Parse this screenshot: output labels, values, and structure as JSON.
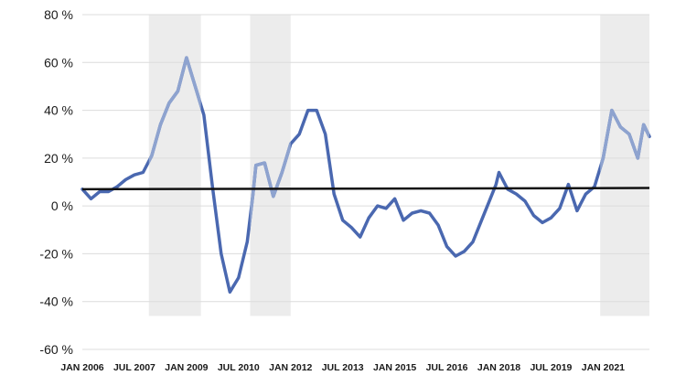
{
  "chart_data": {
    "type": "line",
    "title": "",
    "xlabel": "",
    "ylabel": "",
    "ylim": [
      -60,
      80
    ],
    "y_ticks": [
      {
        "value": 80,
        "label": "80 %"
      },
      {
        "value": 60,
        "label": "60 %"
      },
      {
        "value": 40,
        "label": "40 %"
      },
      {
        "value": 20,
        "label": "20 %"
      },
      {
        "value": 0,
        "label": "0 %"
      },
      {
        "value": -20,
        "label": "-20 %"
      },
      {
        "value": -40,
        "label": "-40 %"
      },
      {
        "value": -60,
        "label": "-60 %"
      }
    ],
    "x_ticks": [
      {
        "date": "2006-01",
        "label": "JAN 2006"
      },
      {
        "date": "2007-07",
        "label": "JUL 2007"
      },
      {
        "date": "2009-01",
        "label": "JAN 2009"
      },
      {
        "date": "2010-07",
        "label": "JUL 2010"
      },
      {
        "date": "2012-01",
        "label": "JAN 2012"
      },
      {
        "date": "2013-07",
        "label": "JUL 2013"
      },
      {
        "date": "2015-01",
        "label": "JAN 2015"
      },
      {
        "date": "2016-07",
        "label": "JUL 2016"
      },
      {
        "date": "2018-01",
        "label": "JAN 2018"
      },
      {
        "date": "2019-07",
        "label": "JUL 2019"
      },
      {
        "date": "2021-01",
        "label": "JAN 2021"
      }
    ],
    "x_range": [
      "2006-01",
      "2022-05"
    ],
    "grid": true,
    "legend": "none",
    "shaded_periods": [
      {
        "start": "2007-12",
        "end": "2009-06"
      },
      {
        "start": "2010-11",
        "end": "2012-01"
      },
      {
        "start": "2020-12",
        "end": "2022-05"
      }
    ],
    "reference_line": {
      "start": {
        "date": "2006-01",
        "value": 7
      },
      "end": {
        "date": "2022-05",
        "value": 7.5
      }
    },
    "series": [
      {
        "color": "#4a68b0",
        "highlight_color": "#8ea3cf",
        "points": [
          [
            "2006-01",
            7
          ],
          [
            "2006-04",
            3
          ],
          [
            "2006-07",
            6
          ],
          [
            "2006-10",
            6
          ],
          [
            "2007-01",
            8
          ],
          [
            "2007-04",
            11
          ],
          [
            "2007-07",
            13
          ],
          [
            "2007-10",
            14
          ],
          [
            "2008-01",
            21
          ],
          [
            "2008-04",
            34
          ],
          [
            "2008-07",
            43
          ],
          [
            "2008-10",
            48
          ],
          [
            "2009-01",
            62
          ],
          [
            "2009-04",
            50
          ],
          [
            "2009-07",
            38
          ],
          [
            "2009-10",
            8
          ],
          [
            "2010-01",
            -20
          ],
          [
            "2010-04",
            -36
          ],
          [
            "2010-07",
            -30
          ],
          [
            "2010-10",
            -15
          ],
          [
            "2010-12",
            5
          ],
          [
            "2011-01",
            17
          ],
          [
            "2011-04",
            18
          ],
          [
            "2011-07",
            4
          ],
          [
            "2011-10",
            14
          ],
          [
            "2012-01",
            26
          ],
          [
            "2012-04",
            30
          ],
          [
            "2012-07",
            40
          ],
          [
            "2012-10",
            40
          ],
          [
            "2013-01",
            30
          ],
          [
            "2013-04",
            5
          ],
          [
            "2013-07",
            -6
          ],
          [
            "2013-10",
            -9
          ],
          [
            "2014-01",
            -13
          ],
          [
            "2014-04",
            -5
          ],
          [
            "2014-07",
            0
          ],
          [
            "2014-10",
            -1
          ],
          [
            "2015-01",
            3
          ],
          [
            "2015-04",
            -6
          ],
          [
            "2015-07",
            -3
          ],
          [
            "2015-10",
            -2
          ],
          [
            "2016-01",
            -3
          ],
          [
            "2016-04",
            -8
          ],
          [
            "2016-07",
            -17
          ],
          [
            "2016-10",
            -21
          ],
          [
            "2017-01",
            -19
          ],
          [
            "2017-04",
            -15
          ],
          [
            "2017-07",
            -6
          ],
          [
            "2017-10",
            3
          ],
          [
            "2017-12",
            9
          ],
          [
            "2018-01",
            14
          ],
          [
            "2018-04",
            7
          ],
          [
            "2018-07",
            5
          ],
          [
            "2018-10",
            2
          ],
          [
            "2019-01",
            -4
          ],
          [
            "2019-04",
            -7
          ],
          [
            "2019-07",
            -5
          ],
          [
            "2019-10",
            -1
          ],
          [
            "2020-01",
            9
          ],
          [
            "2020-04",
            -2
          ],
          [
            "2020-07",
            5
          ],
          [
            "2020-10",
            8
          ],
          [
            "2021-01",
            20
          ],
          [
            "2021-04",
            40
          ],
          [
            "2021-07",
            33
          ],
          [
            "2021-10",
            30
          ],
          [
            "2022-01",
            20
          ],
          [
            "2022-03",
            34
          ],
          [
            "2022-05",
            29
          ]
        ]
      }
    ]
  }
}
